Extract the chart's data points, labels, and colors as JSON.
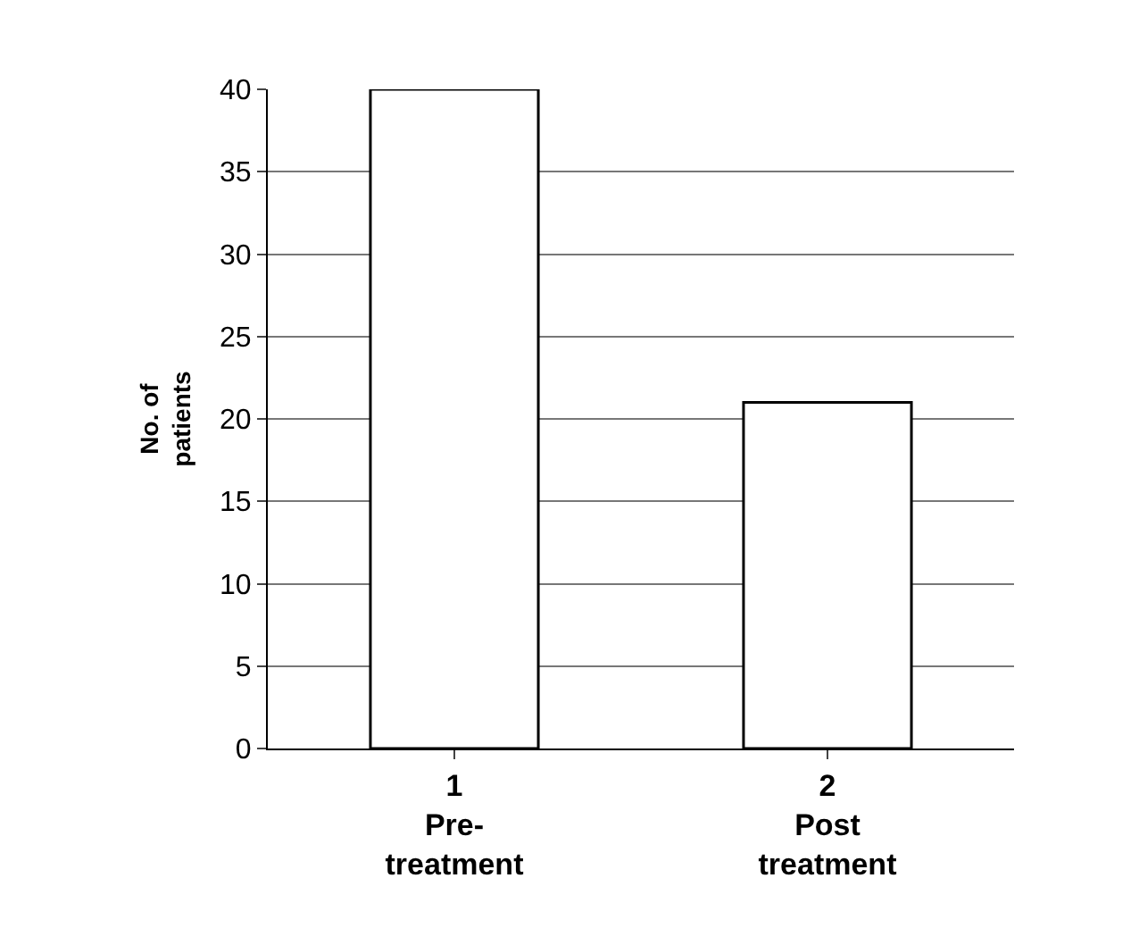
{
  "chart_data": {
    "type": "bar",
    "ylabel": "No. of patients",
    "categories": [
      "1\nPre-\ntreatment",
      "2\nPost\ntreatment"
    ],
    "values": [
      40,
      21
    ],
    "color": "#ffffff",
    "ylim": [
      0,
      40
    ],
    "yticks": [
      0,
      5,
      10,
      15,
      20,
      25,
      30,
      35,
      40
    ],
    "grid": "y"
  }
}
